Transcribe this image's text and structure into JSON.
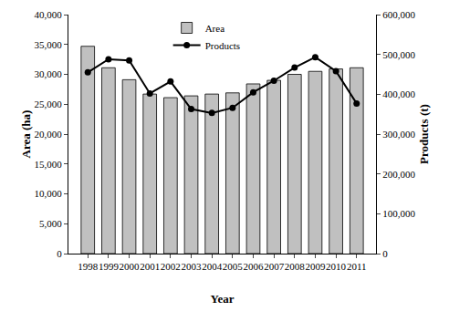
{
  "chart_data": {
    "type": "bar",
    "x_label": "Year",
    "y_label": "Area (ha)",
    "y2_label": "Products (t)",
    "categories": [
      "1998",
      "1999",
      "2000",
      "2001",
      "2002",
      "2003",
      "2004",
      "2005",
      "2006",
      "2007",
      "2008",
      "2009",
      "2010",
      "2011"
    ],
    "series": [
      {
        "name": "Area",
        "type": "bar",
        "color": "#c0c0c0",
        "values": [
          34700,
          31100,
          29100,
          26700,
          26100,
          26400,
          26700,
          26900,
          28400,
          29000,
          30000,
          30500,
          30900,
          31100
        ]
      },
      {
        "name": "Products",
        "type": "line",
        "axis": "y2",
        "color": "#000000",
        "marker": "circle",
        "line_style": "solid",
        "values": [
          455000,
          488000,
          485000,
          402000,
          432000,
          363000,
          353000,
          366000,
          405000,
          434000,
          467000,
          493000,
          458000,
          377000
        ]
      }
    ],
    "ylim": [
      0,
      40000
    ],
    "yticks": [
      0,
      {
        "value": 5000,
        "label": "5,000"
      },
      {
        "value": 10000,
        "label": "10,000"
      },
      {
        "value": 15000,
        "label": "15,000"
      },
      {
        "value": 20000,
        "label": "20,000"
      },
      {
        "value": 25000,
        "label": "25,000"
      },
      {
        "value": 30000,
        "label": "30,000"
      },
      {
        "value": 35000,
        "label": "35,000"
      },
      {
        "value": 40000,
        "label": "40,000"
      }
    ],
    "y2lim": [
      0,
      600000
    ],
    "y2ticks": [
      0,
      {
        "value": 100000,
        "label": "100,000"
      },
      {
        "value": 200000,
        "label": "200,000"
      },
      {
        "value": 300000,
        "label": "300,000"
      },
      {
        "value": 400000,
        "label": "400,000"
      },
      {
        "value": 500000,
        "label": "500,000"
      },
      {
        "value": 600000,
        "label": "600,000"
      }
    ],
    "grid": false,
    "legend": "top"
  }
}
